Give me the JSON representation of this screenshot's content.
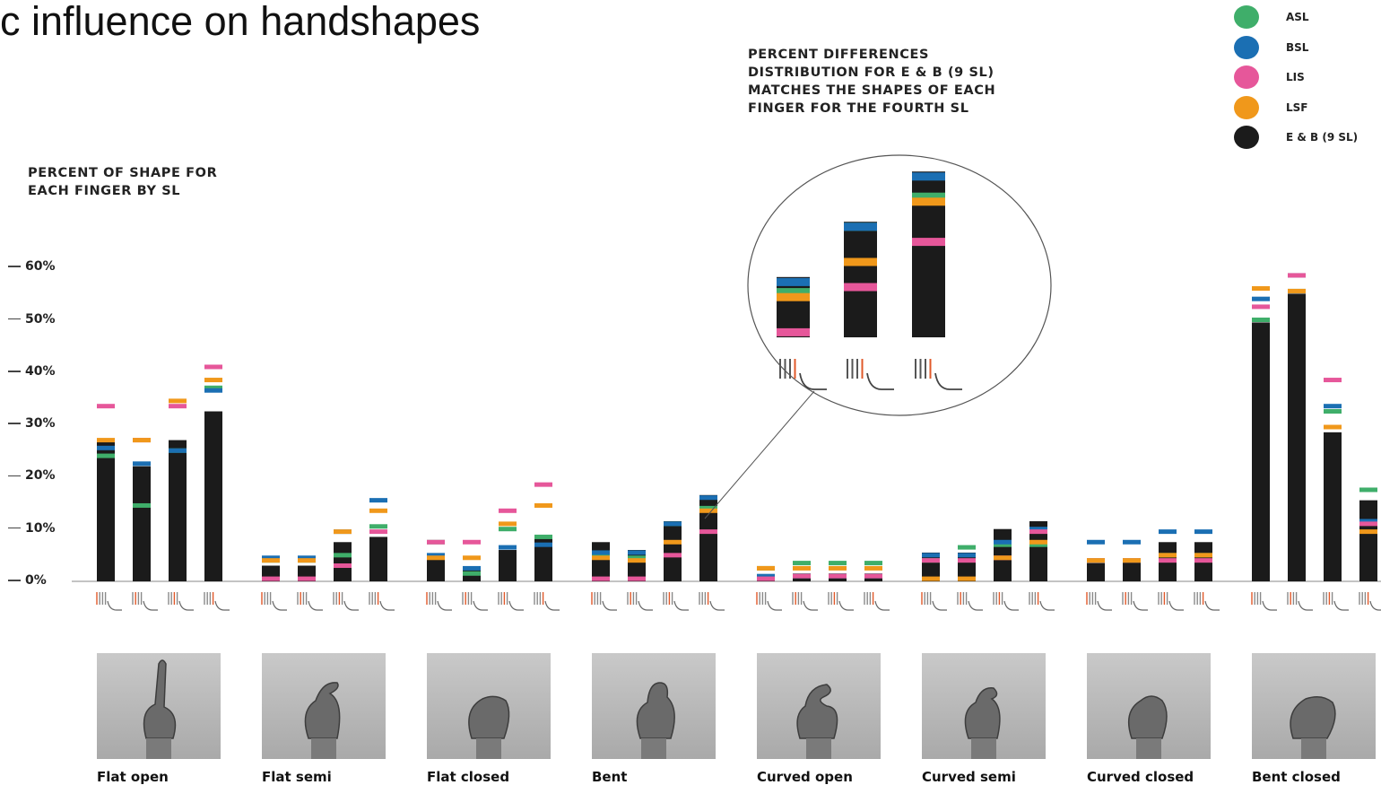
{
  "slide_title": "c influence on handshapes",
  "y_axis_title": "PERCENT OF SHAPE FOR EACH FINGER BY SL",
  "zoom_caption": "PERCENT DIFFERENCES DISTRIBUTION FOR E & B (9 SL) MATCHES THE SHAPES OF EACH FINGER FOR THE FOURTH SL",
  "colors": {
    "ASL": "#3fae6a",
    "BSL": "#1b6fb3",
    "LIS": "#e6579a",
    "LSF": "#f0981b",
    "E & B (9 SL)": "#1b1b1b"
  },
  "legend": [
    {
      "label": "ASL",
      "color": "#3fae6a"
    },
    {
      "label": "BSL",
      "color": "#1b6fb3"
    },
    {
      "label": "LIS",
      "color": "#e6579a"
    },
    {
      "label": "LSF",
      "color": "#f0981b"
    },
    {
      "label": "E & B (9 SL)",
      "color": "#1b1b1b"
    }
  ],
  "y_ticks": [
    "60%",
    "50%",
    "40%",
    "30%",
    "20%",
    "10%",
    "0%"
  ],
  "chart_data": {
    "type": "bar",
    "title": "c influence on handshapes",
    "ylabel": "PERCENT OF SHAPE FOR EACH FINGER BY SL",
    "ylim": [
      0,
      60
    ],
    "y_ticks": [
      0,
      10,
      20,
      30,
      40,
      50,
      60
    ],
    "grid": false,
    "legend_position": "top-right",
    "bar_series": "E & B (9 SL)",
    "marker_series": [
      "ASL",
      "BSL",
      "LIS",
      "LSF"
    ],
    "categories": [
      {
        "name": "Flat open",
        "fingers": [
          {
            "bar": 27,
            "markers": {
              "ASL": 24,
              "BSL": 25.5,
              "LIS": 33.5,
              "LSF": 27
            }
          },
          {
            "bar": 22,
            "markers": {
              "ASL": 14.5,
              "BSL": 22.5,
              "LIS": 27,
              "LSF": 27
            }
          },
          {
            "bar": 27,
            "markers": {
              "ASL": 25,
              "BSL": 25,
              "LIS": 33.5,
              "LSF": 34.5
            }
          },
          {
            "bar": 32.5,
            "markers": {
              "ASL": 37,
              "BSL": 36.5,
              "LIS": 41,
              "LSF": 38.5
            }
          }
        ]
      },
      {
        "name": "Flat semi",
        "fingers": [
          {
            "bar": 3,
            "markers": {
              "ASL": 4,
              "BSL": 4.5,
              "LIS": 0.5,
              "LSF": 4
            }
          },
          {
            "bar": 3,
            "markers": {
              "ASL": 4,
              "BSL": 4.5,
              "LIS": 0.5,
              "LSF": 4
            }
          },
          {
            "bar": 7.5,
            "markers": {
              "ASL": 5,
              "BSL": 9.5,
              "LIS": 3,
              "LSF": 9.5
            }
          },
          {
            "bar": 8.5,
            "markers": {
              "ASL": 10.5,
              "BSL": 15.5,
              "LIS": 9.5,
              "LSF": 13.5
            }
          }
        ]
      },
      {
        "name": "Flat closed",
        "fingers": [
          {
            "bar": 5,
            "markers": {
              "ASL": 7.5,
              "BSL": 5,
              "LIS": 7.5,
              "LSF": 4.5
            }
          },
          {
            "bar": 2.5,
            "markers": {
              "ASL": 1.5,
              "BSL": 2.5,
              "LIS": 7.5,
              "LSF": 4.5
            }
          },
          {
            "bar": 6,
            "markers": {
              "ASL": 10,
              "BSL": 6.5,
              "LIS": 13.5,
              "LSF": 11
            }
          },
          {
            "bar": 8.5,
            "markers": {
              "ASL": 8.5,
              "BSL": 7,
              "LIS": 18.5,
              "LSF": 14.5
            }
          }
        ]
      },
      {
        "name": "Bent",
        "fingers": [
          {
            "bar": 7.5,
            "markers": {
              "ASL": 5,
              "BSL": 5.5,
              "LIS": 0.5,
              "LSF": 4.5
            }
          },
          {
            "bar": 6,
            "markers": {
              "ASL": 4.5,
              "BSL": 5.5,
              "LIS": 0.5,
              "LSF": 4
            }
          },
          {
            "bar": 11.5,
            "markers": {
              "ASL": 11,
              "BSL": 11,
              "LIS": 5,
              "LSF": 7.5
            }
          },
          {
            "bar": 16.5,
            "markers": {
              "ASL": 14,
              "BSL": 16,
              "LIS": 9.5,
              "LSF": 13.5
            }
          }
        ]
      },
      {
        "name": "Curved open",
        "fingers": [
          {
            "bar": 1,
            "markers": {
              "ASL": 2.5,
              "BSL": 1,
              "LIS": 0.5,
              "LSF": 2.5
            }
          },
          {
            "bar": 1.5,
            "markers": {
              "ASL": 3.5,
              "BSL": 1,
              "LIS": 1,
              "LSF": 2.5
            }
          },
          {
            "bar": 1.5,
            "markers": {
              "ASL": 3.5,
              "BSL": 1,
              "LIS": 1,
              "LSF": 2.5
            }
          },
          {
            "bar": 1.5,
            "markers": {
              "ASL": 3.5,
              "BSL": 1,
              "LIS": 1,
              "LSF": 2.5
            }
          }
        ]
      },
      {
        "name": "Curved semi",
        "fingers": [
          {
            "bar": 5.5,
            "markers": {
              "ASL": 4,
              "BSL": 5,
              "LIS": 4,
              "LSF": 0.5
            }
          },
          {
            "bar": 5.5,
            "markers": {
              "ASL": 6.5,
              "BSL": 5,
              "LIS": 4,
              "LSF": 0.5
            }
          },
          {
            "bar": 10,
            "markers": {
              "ASL": 7,
              "BSL": 7.5,
              "LIS": 4.5,
              "LSF": 4.5
            }
          },
          {
            "bar": 11.5,
            "markers": {
              "ASL": 7,
              "BSL": 10,
              "LIS": 9.5,
              "LSF": 7.5
            }
          }
        ]
      },
      {
        "name": "Curved closed",
        "fingers": [
          {
            "bar": 3.5,
            "markers": {
              "ASL": 4,
              "BSL": 7.5,
              "LIS": 4,
              "LSF": 4
            }
          },
          {
            "bar": 4,
            "markers": {
              "ASL": 4,
              "BSL": 7.5,
              "LIS": 4,
              "LSF": 4
            }
          },
          {
            "bar": 7.5,
            "markers": {
              "ASL": 5,
              "BSL": 9.5,
              "LIS": 4,
              "LSF": 5
            }
          },
          {
            "bar": 7.5,
            "markers": {
              "ASL": 5,
              "BSL": 9.5,
              "LIS": 4,
              "LSF": 5
            }
          }
        ]
      },
      {
        "name": "Bent closed",
        "fingers": [
          {
            "bar": 49.5,
            "markers": {
              "ASL": 50,
              "BSL": 54,
              "LIS": 52.5,
              "LSF": 56
            }
          },
          {
            "bar": 55,
            "markers": {
              "ASL": 55.5,
              "BSL": 58.5,
              "LIS": 58.5,
              "LSF": 55.5
            }
          },
          {
            "bar": 28.5,
            "markers": {
              "ASL": 32.5,
              "BSL": 33.5,
              "LIS": 38.5,
              "LSF": 29.5
            }
          },
          {
            "bar": 15.5,
            "markers": {
              "ASL": 17.5,
              "BSL": 11.5,
              "LIS": 11,
              "LSF": 9.5
            }
          }
        ]
      }
    ]
  }
}
